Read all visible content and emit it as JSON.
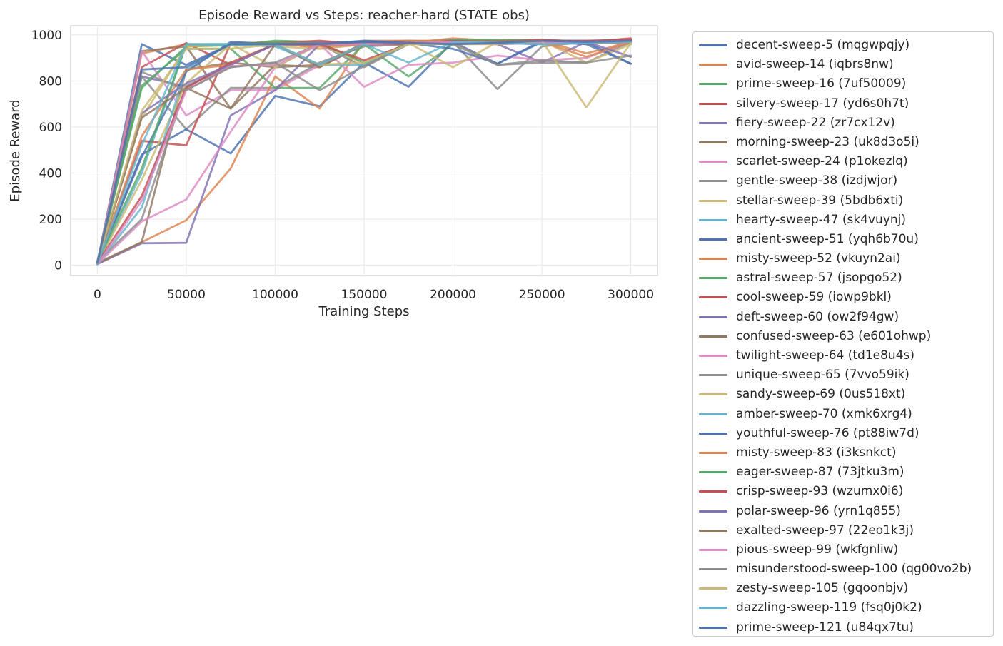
{
  "chart_data": {
    "type": "line",
    "title": "Episode Reward vs Steps: reacher-hard (STATE obs)",
    "xlabel": "Training Steps",
    "ylabel": "Episode Reward",
    "xlim": [
      -15000,
      315000
    ],
    "ylim": [
      -45,
      1040
    ],
    "xticks": [
      0,
      50000,
      100000,
      150000,
      200000,
      250000,
      300000
    ],
    "yticks": [
      0,
      200,
      400,
      600,
      800,
      1000
    ],
    "grid": true,
    "legend_position": "outside-right",
    "x": [
      0,
      25000,
      50000,
      75000,
      100000,
      125000,
      150000,
      175000,
      200000,
      225000,
      250000,
      275000,
      300000
    ],
    "colors": [
      "#4c72b0",
      "#dd8452",
      "#55a868",
      "#c44e52",
      "#8172b3",
      "#937860",
      "#da8bc3",
      "#8c8c8c",
      "#ccb974",
      "#64b5cd"
    ],
    "series": [
      {
        "name": "decent-sweep-5 (mqgwpqjy)",
        "values": [
          10,
          960,
          870,
          960,
          960,
          965,
          970,
          975,
          970,
          970,
          975,
          975,
          975
        ]
      },
      {
        "name": "avid-sweep-14 (iqbrs8nw)",
        "values": [
          5,
          920,
          960,
          955,
          970,
          940,
          960,
          965,
          985,
          975,
          980,
          960,
          975
        ]
      },
      {
        "name": "prime-sweep-16 (7uf50009)",
        "values": [
          15,
          770,
          950,
          955,
          975,
          970,
          960,
          965,
          980,
          980,
          975,
          970,
          975
        ]
      },
      {
        "name": "silvery-sweep-17 (yd6s0h7t)",
        "values": [
          10,
          860,
          965,
          870,
          960,
          960,
          955,
          970,
          975,
          970,
          975,
          970,
          985
        ]
      },
      {
        "name": "fiery-sweep-22 (zr7cx12v)",
        "values": [
          5,
          820,
          775,
          870,
          960,
          955,
          960,
          965,
          970,
          965,
          960,
          970,
          975
        ]
      },
      {
        "name": "morning-sweep-23 (uk8d3o5i)",
        "values": [
          10,
          930,
          950,
          680,
          870,
          860,
          960,
          965,
          975,
          970,
          975,
          970,
          975
        ]
      },
      {
        "name": "scarlet-sweep-24 (p1okezlq)",
        "values": [
          5,
          930,
          650,
          760,
          760,
          870,
          960,
          960,
          965,
          960,
          965,
          970,
          970
        ]
      },
      {
        "name": "gentle-sweep-38 (izdjwjor)",
        "values": [
          15,
          820,
          590,
          770,
          770,
          880,
          950,
          960,
          970,
          765,
          950,
          970,
          970
        ]
      },
      {
        "name": "stellar-sweep-39 (5bdb6xti)",
        "values": [
          10,
          640,
          950,
          960,
          950,
          940,
          960,
          965,
          975,
          970,
          975,
          970,
          975
        ]
      },
      {
        "name": "hearty-sweep-47 (sk4vuynj)",
        "values": [
          5,
          400,
          960,
          955,
          965,
          960,
          965,
          965,
          970,
          975,
          975,
          970,
          975
        ]
      },
      {
        "name": "ancient-sweep-51 (yqh6b70u)",
        "values": [
          10,
          480,
          590,
          485,
          735,
          690,
          880,
          775,
          970,
          875,
          970,
          960,
          875
        ]
      },
      {
        "name": "misty-sweep-52 (vkuyn2ai)",
        "values": [
          5,
          100,
          195,
          420,
          820,
          680,
          975,
          975,
          975,
          970,
          975,
          920,
          970
        ]
      },
      {
        "name": "astral-sweep-57 (jsopgo52)",
        "values": [
          15,
          780,
          940,
          940,
          770,
          770,
          960,
          820,
          960,
          965,
          975,
          970,
          975
        ]
      },
      {
        "name": "cool-sweep-59 (iowp9bkl)",
        "values": [
          10,
          540,
          520,
          965,
          965,
          975,
          960,
          960,
          965,
          970,
          975,
          975,
          980
        ]
      },
      {
        "name": "deft-sweep-60 (ow2f94gw)",
        "values": [
          5,
          95,
          97,
          650,
          760,
          960,
          960,
          965,
          970,
          960,
          880,
          970,
          975
        ]
      },
      {
        "name": "confused-sweep-63 (e601ohwp)",
        "values": [
          10,
          100,
          850,
          880,
          860,
          870,
          965,
          960,
          975,
          970,
          975,
          970,
          960
        ]
      },
      {
        "name": "twilight-sweep-64 (td1e8u4s)",
        "values": [
          5,
          190,
          285,
          580,
          860,
          960,
          775,
          870,
          880,
          910,
          890,
          900,
          975
        ]
      },
      {
        "name": "unique-sweep-65 (7vvo59ik)",
        "values": [
          15,
          200,
          780,
          860,
          880,
          960,
          860,
          960,
          970,
          870,
          890,
          880,
          970
        ]
      },
      {
        "name": "sandy-sweep-69 (0us518xt)",
        "values": [
          10,
          370,
          790,
          960,
          860,
          960,
          875,
          965,
          860,
          970,
          975,
          880,
          960
        ]
      },
      {
        "name": "amber-sweep-70 (xmk6xrg4)",
        "values": [
          5,
          250,
          850,
          960,
          950,
          870,
          870,
          960,
          975,
          970,
          975,
          970,
          975
        ]
      },
      {
        "name": "youthful-sweep-76 (pt88iw7d)",
        "values": [
          10,
          470,
          840,
          970,
          960,
          960,
          975,
          965,
          940,
          875,
          975,
          970,
          875
        ]
      },
      {
        "name": "misty-sweep-83 (i3ksnkct)",
        "values": [
          5,
          560,
          850,
          870,
          960,
          950,
          960,
          965,
          970,
          965,
          970,
          905,
          970
        ]
      },
      {
        "name": "eager-sweep-87 (73jtku3m)",
        "values": [
          15,
          420,
          960,
          960,
          965,
          965,
          880,
          965,
          960,
          970,
          975,
          970,
          975
        ]
      },
      {
        "name": "crisp-sweep-93 (wzumx0i6)",
        "values": [
          10,
          300,
          770,
          880,
          960,
          960,
          890,
          960,
          975,
          970,
          980,
          970,
          980
        ]
      },
      {
        "name": "polar-sweep-96 (yrn1q855)",
        "values": [
          5,
          660,
          790,
          870,
          960,
          965,
          960,
          965,
          965,
          960,
          970,
          970,
          905
        ]
      },
      {
        "name": "exalted-sweep-97 (22eo1k3j)",
        "values": [
          10,
          640,
          770,
          680,
          960,
          860,
          960,
          965,
          970,
          975,
          975,
          970,
          975
        ]
      },
      {
        "name": "pious-sweep-99 (wkfgnliw)",
        "values": [
          5,
          280,
          760,
          865,
          870,
          960,
          960,
          965,
          970,
          965,
          965,
          970,
          975
        ]
      },
      {
        "name": "misunderstood-sweep-100 (qg00vo2b)",
        "values": [
          15,
          840,
          760,
          860,
          880,
          760,
          865,
          965,
          960,
          870,
          880,
          880,
          910
        ]
      },
      {
        "name": "zesty-sweep-105 (gqoonbjv)",
        "values": [
          10,
          670,
          940,
          940,
          960,
          870,
          880,
          960,
          960,
          960,
          975,
          685,
          965
        ]
      },
      {
        "name": "dazzling-sweep-119 (fsq0j0k2)",
        "values": [
          5,
          520,
          960,
          960,
          960,
          870,
          960,
          880,
          970,
          965,
          960,
          965,
          970
        ]
      },
      {
        "name": "prime-sweep-121 (u84qx7tu)",
        "values": [
          10,
          850,
          860,
          960,
          960,
          960,
          970,
          965,
          960,
          965,
          975,
          970,
          975
        ]
      }
    ]
  }
}
